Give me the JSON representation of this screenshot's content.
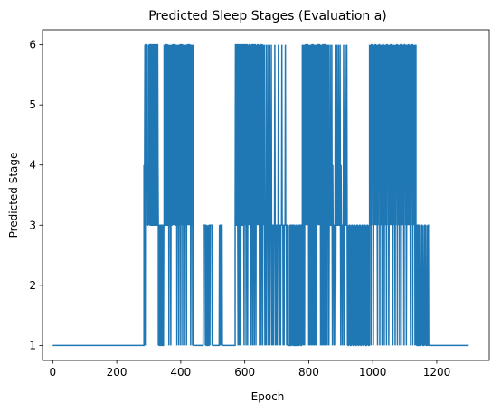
{
  "chart_data": {
    "type": "line",
    "title": "Predicted Sleep Stages (Evaluation a)",
    "xlabel": "Epoch",
    "ylabel": "Predicted Stage",
    "xlim": [
      -32,
      1364
    ],
    "ylim": [
      0.75,
      6.25
    ],
    "xticks": [
      0,
      200,
      400,
      600,
      800,
      1000,
      1200
    ],
    "yticks": [
      1,
      2,
      3,
      4,
      5,
      6
    ],
    "grid": false,
    "legend": "none",
    "color": "#1f77b4",
    "segments": [
      {
        "range": [
          0,
          285
        ],
        "mode": "constant",
        "value": 1
      },
      {
        "range": [
          285,
          300
        ],
        "mode": "levels",
        "levels": [
          3,
          6,
          4,
          3,
          6,
          4,
          6,
          1
        ]
      },
      {
        "range": [
          300,
          330
        ],
        "mode": "levels",
        "levels": [
          6,
          3,
          4,
          6,
          1,
          6,
          3,
          4,
          6,
          3
        ]
      },
      {
        "range": [
          330,
          348
        ],
        "mode": "levels",
        "levels": [
          1,
          3,
          1,
          3
        ]
      },
      {
        "range": [
          348,
          362
        ],
        "mode": "levels",
        "levels": [
          3,
          6,
          3,
          6,
          3
        ]
      },
      {
        "range": [
          362,
          440
        ],
        "mode": "levels",
        "levels": [
          6,
          3,
          6,
          1,
          6,
          3,
          6,
          3
        ]
      },
      {
        "range": [
          440,
          470
        ],
        "mode": "constant",
        "value": 1
      },
      {
        "range": [
          470,
          500
        ],
        "mode": "levels",
        "levels": [
          3,
          1,
          3,
          1,
          3,
          1,
          3
        ]
      },
      {
        "range": [
          500,
          520
        ],
        "mode": "constant",
        "value": 1
      },
      {
        "range": [
          520,
          530
        ],
        "mode": "levels",
        "levels": [
          3,
          1,
          3
        ]
      },
      {
        "range": [
          530,
          570
        ],
        "mode": "constant",
        "value": 1
      },
      {
        "range": [
          570,
          600
        ],
        "mode": "levels",
        "levels": [
          3,
          6,
          1,
          6,
          3,
          6
        ]
      },
      {
        "range": [
          600,
          660
        ],
        "mode": "levels",
        "levels": [
          6,
          3,
          6,
          1,
          6,
          3,
          6
        ]
      },
      {
        "range": [
          660,
          735
        ],
        "mode": "levels",
        "levels": [
          3,
          1,
          3,
          6,
          3,
          1,
          3
        ]
      },
      {
        "range": [
          735,
          740
        ],
        "mode": "levels",
        "levels": [
          4,
          1
        ]
      },
      {
        "range": [
          740,
          780
        ],
        "mode": "levels",
        "levels": [
          3,
          1,
          3,
          1,
          3,
          1
        ]
      },
      {
        "range": [
          780,
          860
        ],
        "mode": "levels",
        "levels": [
          6,
          1,
          6,
          3,
          6,
          1,
          6,
          3
        ]
      },
      {
        "range": [
          860,
          920
        ],
        "mode": "levels",
        "levels": [
          3,
          6,
          3,
          1,
          3,
          4,
          3
        ]
      },
      {
        "range": [
          920,
          990
        ],
        "mode": "levels",
        "levels": [
          3,
          1,
          3,
          1,
          3,
          1
        ]
      },
      {
        "range": [
          990,
          1135
        ],
        "mode": "levels",
        "levels": [
          6,
          3,
          6,
          1,
          6,
          3,
          6,
          4
        ]
      },
      {
        "range": [
          1135,
          1145
        ],
        "mode": "levels",
        "levels": [
          3,
          1
        ]
      },
      {
        "range": [
          1145,
          1175
        ],
        "mode": "levels",
        "levels": [
          1,
          3,
          1,
          3,
          1
        ]
      },
      {
        "range": [
          1175,
          1300
        ],
        "mode": "constant",
        "value": 1
      }
    ]
  }
}
